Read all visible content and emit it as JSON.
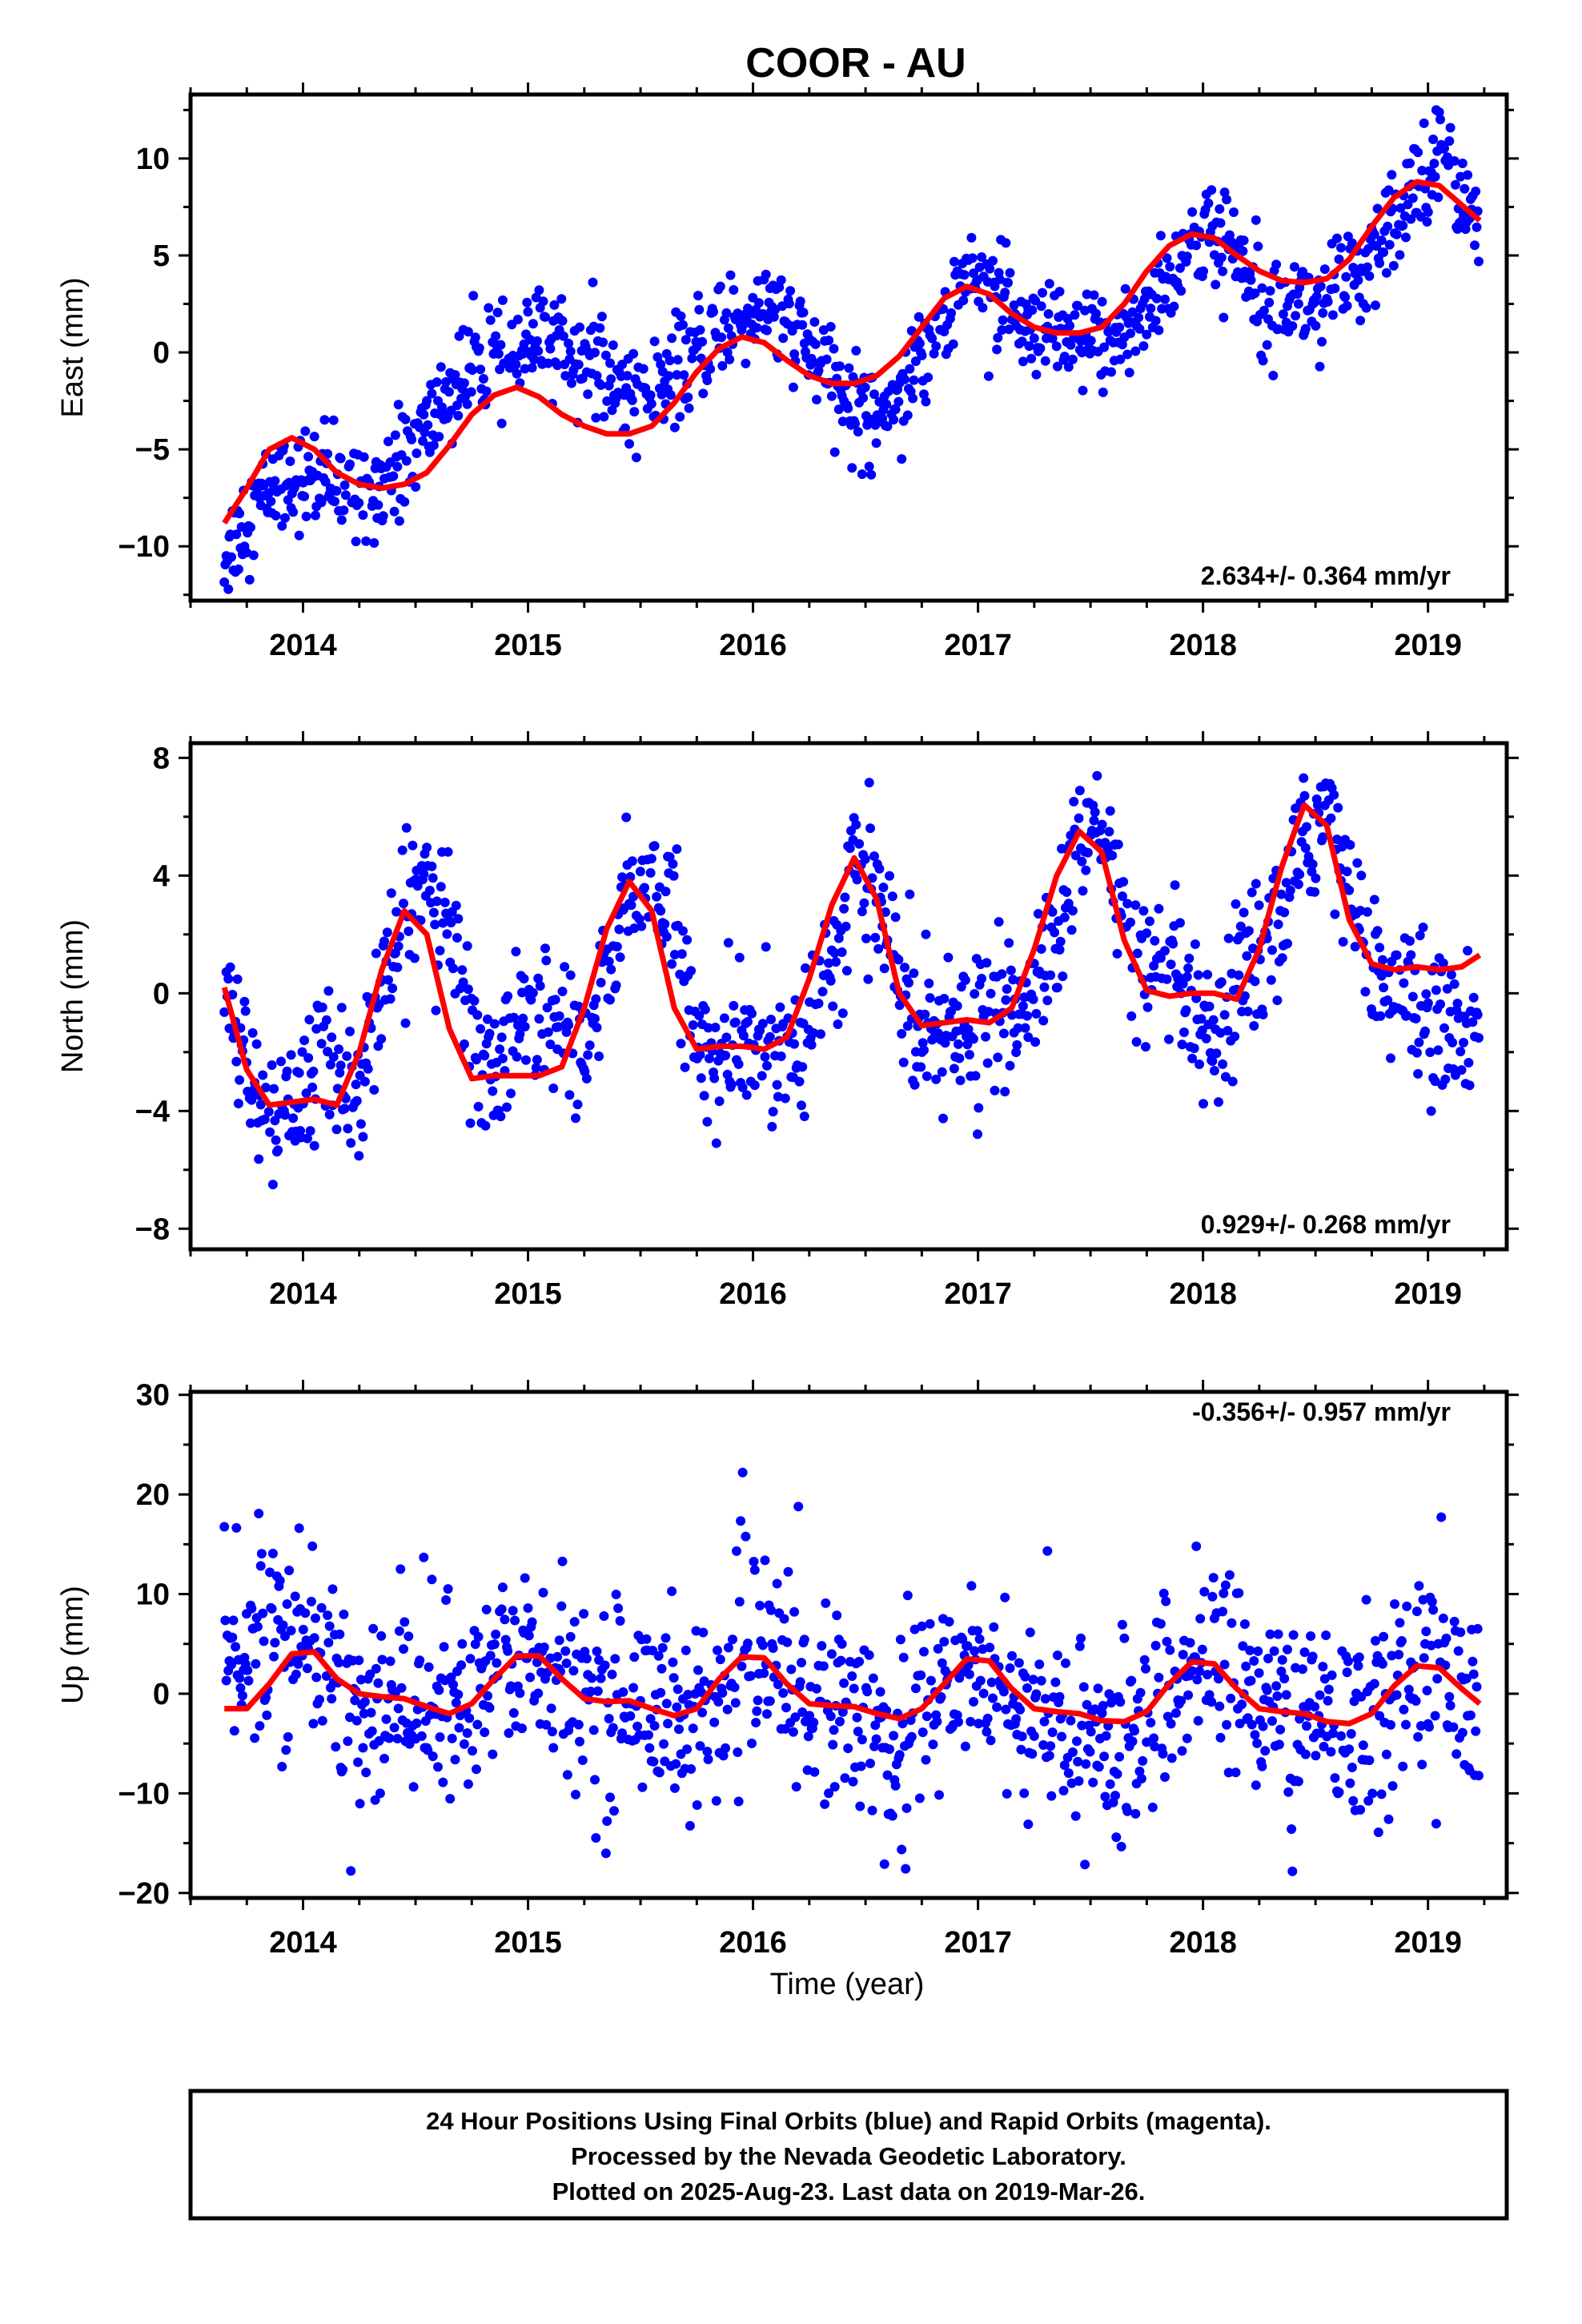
{
  "title": "COOR - AU",
  "xlabel": "Time (year)",
  "colors": {
    "final_orbits": "#0000ff",
    "model": "#ff0000",
    "axes": "#000000"
  },
  "footer": {
    "line1": "24 Hour Positions Using Final Orbits (blue) and Rapid Orbits (magenta).",
    "line2": "Processed by the Nevada Geodetic Laboratory.",
    "line3": "Plotted on 2025-Aug-23. Last data on 2019-Mar-26."
  },
  "chart_data": [
    {
      "type": "scatter",
      "ylabel": "East (mm)",
      "rate": "2.634+/- 0.364 mm/yr",
      "xlim": [
        2013.5,
        2019.35
      ],
      "ylim": [
        -12.8,
        13.3
      ],
      "x_ticks": [
        2014,
        2015,
        2016,
        2017,
        2018,
        2019
      ],
      "x_tick_labels": [
        "2014",
        "2015",
        "2016",
        "2017",
        "2018",
        "2019"
      ],
      "y_ticks": [
        -10,
        -5,
        0,
        5,
        10
      ],
      "y_tick_labels": [
        "−10",
        "−5",
        "0",
        "5",
        "10"
      ],
      "series": [
        {
          "kind": "daily positions (blue dots, approximate envelope of a dense cloud)",
          "x": [
            2013.65,
            2013.75,
            2013.85,
            2013.95,
            2014.05,
            2014.15,
            2014.25,
            2014.35,
            2014.45,
            2014.55,
            2014.65,
            2014.75,
            2014.85,
            2014.95,
            2015.05,
            2015.15,
            2015.25,
            2015.35,
            2015.45,
            2015.55,
            2015.65,
            2015.75,
            2015.85,
            2015.95,
            2016.05,
            2016.15,
            2016.25,
            2016.35,
            2016.45,
            2016.55,
            2016.65,
            2016.75,
            2016.85,
            2016.95,
            2017.05,
            2017.15,
            2017.25,
            2017.35,
            2017.45,
            2017.55,
            2017.65,
            2017.75,
            2017.85,
            2017.95,
            2018.05,
            2018.15,
            2018.25,
            2018.35,
            2018.45,
            2018.55,
            2018.65,
            2018.75,
            2018.85,
            2018.95,
            2019.05,
            2019.15,
            2019.23
          ],
          "y": [
            -10.5,
            -8.5,
            -7.0,
            -6.5,
            -6.5,
            -7.0,
            -7.0,
            -6.5,
            -5.5,
            -4.0,
            -2.0,
            -1.0,
            -0.5,
            0.0,
            0.5,
            0.5,
            0.0,
            -1.5,
            -2.0,
            -2.0,
            -1.5,
            0.0,
            1.0,
            2.0,
            2.5,
            1.5,
            0.0,
            -1.5,
            -3.0,
            -3.0,
            -2.0,
            0.0,
            2.0,
            4.0,
            4.0,
            1.5,
            0.5,
            0.5,
            0.5,
            0.5,
            1.0,
            2.0,
            4.0,
            5.5,
            6.0,
            5.0,
            3.5,
            3.0,
            2.5,
            3.0,
            3.5,
            4.5,
            6.5,
            8.5,
            11.0,
            8.5,
            6.0
          ],
          "spread": 1.3
        },
        {
          "kind": "model fit (red line)",
          "x": [
            2013.65,
            2013.75,
            2013.85,
            2013.95,
            2014.05,
            2014.15,
            2014.25,
            2014.35,
            2014.45,
            2014.55,
            2014.65,
            2014.75,
            2014.85,
            2014.95,
            2015.05,
            2015.15,
            2015.25,
            2015.35,
            2015.45,
            2015.55,
            2015.65,
            2015.75,
            2015.85,
            2015.95,
            2016.05,
            2016.15,
            2016.25,
            2016.35,
            2016.45,
            2016.55,
            2016.65,
            2016.75,
            2016.85,
            2016.95,
            2017.05,
            2017.15,
            2017.25,
            2017.35,
            2017.45,
            2017.55,
            2017.65,
            2017.75,
            2017.85,
            2017.95,
            2018.05,
            2018.15,
            2018.25,
            2018.35,
            2018.45,
            2018.55,
            2018.65,
            2018.75,
            2018.85,
            2018.95,
            2019.05,
            2019.15,
            2019.23
          ],
          "y": [
            -8.8,
            -7.0,
            -5.0,
            -4.4,
            -5.0,
            -6.2,
            -6.8,
            -7.0,
            -6.8,
            -6.2,
            -4.8,
            -3.2,
            -2.2,
            -1.8,
            -2.3,
            -3.2,
            -3.8,
            -4.2,
            -4.2,
            -3.8,
            -2.6,
            -1.0,
            0.2,
            0.8,
            0.5,
            -0.4,
            -1.2,
            -1.6,
            -1.6,
            -1.2,
            -0.2,
            1.3,
            2.8,
            3.4,
            3.0,
            2.0,
            1.3,
            1.0,
            1.0,
            1.3,
            2.5,
            4.2,
            5.5,
            6.1,
            5.9,
            5.0,
            4.2,
            3.7,
            3.6,
            3.8,
            4.8,
            6.5,
            8.0,
            8.8,
            8.6,
            7.6,
            6.8
          ]
        }
      ]
    },
    {
      "type": "scatter",
      "ylabel": "North (mm)",
      "rate": "0.929+/- 0.268 mm/yr",
      "xlim": [
        2013.5,
        2019.35
      ],
      "ylim": [
        -8.7,
        8.5
      ],
      "x_ticks": [
        2014,
        2015,
        2016,
        2017,
        2018,
        2019
      ],
      "x_tick_labels": [
        "2014",
        "2015",
        "2016",
        "2017",
        "2018",
        "2019"
      ],
      "y_ticks": [
        -8,
        -4,
        0,
        4,
        8
      ],
      "y_tick_labels": [
        "−8",
        "−4",
        "0",
        "4",
        "8"
      ],
      "series": [
        {
          "kind": "daily positions (blue dots, approximate envelope of a dense cloud)",
          "x": [
            2013.65,
            2013.75,
            2013.85,
            2013.95,
            2014.05,
            2014.15,
            2014.25,
            2014.35,
            2014.45,
            2014.55,
            2014.65,
            2014.75,
            2014.85,
            2014.95,
            2015.05,
            2015.15,
            2015.25,
            2015.35,
            2015.45,
            2015.55,
            2015.65,
            2015.75,
            2015.85,
            2015.95,
            2016.05,
            2016.15,
            2016.25,
            2016.35,
            2016.45,
            2016.55,
            2016.65,
            2016.75,
            2016.85,
            2016.95,
            2017.05,
            2017.15,
            2017.25,
            2017.35,
            2017.45,
            2017.55,
            2017.65,
            2017.75,
            2017.85,
            2017.95,
            2018.05,
            2018.15,
            2018.25,
            2018.35,
            2018.45,
            2018.55,
            2018.65,
            2018.75,
            2018.85,
            2018.95,
            2019.05,
            2019.15,
            2019.23
          ],
          "y": [
            0.0,
            -2.5,
            -4.5,
            -4.0,
            -2.5,
            -2.5,
            -3.0,
            -0.5,
            2.5,
            4.0,
            2.0,
            -1.5,
            -2.5,
            -1.5,
            -0.5,
            -1.0,
            -2.0,
            0.5,
            3.5,
            4.0,
            2.0,
            -1.5,
            -2.5,
            -2.0,
            -1.5,
            -2.0,
            -1.0,
            1.0,
            4.0,
            3.5,
            0.5,
            -1.0,
            -1.5,
            -1.5,
            -0.5,
            -1.0,
            0.0,
            2.0,
            5.0,
            5.5,
            2.5,
            0.5,
            0.5,
            -0.5,
            -2.5,
            0.0,
            1.5,
            2.5,
            5.0,
            6.5,
            4.0,
            1.0,
            0.0,
            -0.5,
            -1.0,
            -1.0,
            -1.5
          ],
          "spread": 1.2
        },
        {
          "kind": "model fit (red line)",
          "x": [
            2013.65,
            2013.75,
            2013.85,
            2013.95,
            2014.05,
            2014.15,
            2014.25,
            2014.35,
            2014.45,
            2014.55,
            2014.65,
            2014.75,
            2014.85,
            2014.95,
            2015.05,
            2015.15,
            2015.25,
            2015.35,
            2015.45,
            2015.55,
            2015.65,
            2015.75,
            2015.85,
            2015.95,
            2016.05,
            2016.15,
            2016.25,
            2016.35,
            2016.45,
            2016.55,
            2016.65,
            2016.75,
            2016.85,
            2016.95,
            2017.05,
            2017.15,
            2017.25,
            2017.35,
            2017.45,
            2017.55,
            2017.65,
            2017.75,
            2017.85,
            2017.95,
            2018.05,
            2018.15,
            2018.25,
            2018.35,
            2018.45,
            2018.55,
            2018.65,
            2018.75,
            2018.85,
            2018.95,
            2019.05,
            2019.15,
            2019.23
          ],
          "y": [
            0.2,
            -2.6,
            -3.8,
            -3.7,
            -3.6,
            -3.8,
            -2.0,
            0.8,
            2.8,
            2.0,
            -1.2,
            -2.9,
            -2.8,
            -2.8,
            -2.8,
            -2.5,
            -0.5,
            2.2,
            3.8,
            2.8,
            -0.5,
            -1.9,
            -1.8,
            -1.8,
            -1.9,
            -1.5,
            0.5,
            3.0,
            4.6,
            3.2,
            0.0,
            -1.1,
            -1.0,
            -0.9,
            -1.0,
            -0.5,
            1.5,
            4.0,
            5.5,
            4.8,
            1.8,
            0.1,
            -0.1,
            0.0,
            0.0,
            -0.2,
            1.5,
            4.3,
            6.4,
            5.7,
            2.5,
            1.0,
            0.8,
            0.9,
            0.8,
            0.9,
            1.3
          ]
        }
      ]
    },
    {
      "type": "scatter",
      "ylabel": "Up (mm)",
      "rate": "-0.356+/- 0.957 mm/yr",
      "xlim": [
        2013.5,
        2019.35
      ],
      "ylim": [
        -20.5,
        30.3
      ],
      "x_ticks": [
        2014,
        2015,
        2016,
        2017,
        2018,
        2019
      ],
      "x_tick_labels": [
        "2014",
        "2015",
        "2016",
        "2017",
        "2018",
        "2019"
      ],
      "y_ticks": [
        -20,
        -10,
        0,
        10,
        20,
        30
      ],
      "y_tick_labels": [
        "−20",
        "−10",
        "0",
        "10",
        "20",
        "30"
      ],
      "series": [
        {
          "kind": "daily positions (blue dots, approximate envelope of a dense cloud)",
          "x": [
            2013.65,
            2013.75,
            2013.85,
            2013.95,
            2014.05,
            2014.15,
            2014.25,
            2014.35,
            2014.45,
            2014.55,
            2014.65,
            2014.75,
            2014.85,
            2014.95,
            2015.05,
            2015.15,
            2015.25,
            2015.35,
            2015.45,
            2015.55,
            2015.65,
            2015.75,
            2015.85,
            2015.95,
            2016.05,
            2016.15,
            2016.25,
            2016.35,
            2016.45,
            2016.55,
            2016.65,
            2016.75,
            2016.85,
            2016.95,
            2017.05,
            2017.15,
            2017.25,
            2017.35,
            2017.45,
            2017.55,
            2017.65,
            2017.75,
            2017.85,
            2017.95,
            2018.05,
            2018.15,
            2018.25,
            2018.35,
            2018.45,
            2018.55,
            2018.65,
            2018.75,
            2018.85,
            2018.95,
            2019.05,
            2019.15,
            2019.23
          ],
          "y": [
            3.0,
            5.0,
            6.0,
            5.0,
            4.0,
            1.0,
            -2.0,
            -2.0,
            0.0,
            0.0,
            -2.0,
            -2.0,
            2.0,
            4.0,
            4.0,
            1.0,
            0.0,
            -1.0,
            0.0,
            -1.0,
            -2.0,
            -3.0,
            -1.0,
            3.0,
            5.0,
            2.0,
            0.0,
            -1.0,
            -2.0,
            -3.0,
            -3.0,
            -2.0,
            0.0,
            3.0,
            3.0,
            0.0,
            -3.0,
            -4.0,
            -4.0,
            -5.0,
            -5.0,
            -4.0,
            0.0,
            3.0,
            4.0,
            1.0,
            -1.0,
            -2.0,
            -3.0,
            -3.0,
            -3.0,
            -2.0,
            0.0,
            3.0,
            2.0,
            0.0,
            -2.0
          ],
          "spread": 5.0
        },
        {
          "kind": "model fit (red line)",
          "x": [
            2013.65,
            2013.75,
            2013.85,
            2013.95,
            2014.05,
            2014.15,
            2014.25,
            2014.35,
            2014.45,
            2014.55,
            2014.65,
            2014.75,
            2014.85,
            2014.95,
            2015.05,
            2015.15,
            2015.25,
            2015.35,
            2015.45,
            2015.55,
            2015.65,
            2015.75,
            2015.85,
            2015.95,
            2016.05,
            2016.15,
            2016.25,
            2016.35,
            2016.45,
            2016.55,
            2016.65,
            2016.75,
            2016.85,
            2016.95,
            2017.05,
            2017.15,
            2017.25,
            2017.35,
            2017.45,
            2017.55,
            2017.65,
            2017.75,
            2017.85,
            2017.95,
            2018.05,
            2018.15,
            2018.25,
            2018.35,
            2018.45,
            2018.55,
            2018.65,
            2018.75,
            2018.85,
            2018.95,
            2019.05,
            2019.15,
            2019.23
          ],
          "y": [
            -1.5,
            -1.5,
            1.0,
            4.0,
            4.2,
            1.5,
            0.0,
            -0.3,
            -0.5,
            -1.3,
            -2.0,
            -1.0,
            1.5,
            3.8,
            3.8,
            1.5,
            -0.5,
            -0.8,
            -0.7,
            -1.5,
            -2.2,
            -1.5,
            1.5,
            3.7,
            3.6,
            1.0,
            -1.0,
            -1.2,
            -1.3,
            -2.0,
            -2.5,
            -1.5,
            1.0,
            3.5,
            3.3,
            0.5,
            -1.5,
            -1.8,
            -2.0,
            -2.7,
            -2.8,
            -1.8,
            1.0,
            3.2,
            3.0,
            0.5,
            -1.5,
            -1.8,
            -2.0,
            -2.8,
            -3.0,
            -2.0,
            0.8,
            2.8,
            2.6,
            0.5,
            -1.0
          ]
        }
      ]
    }
  ]
}
